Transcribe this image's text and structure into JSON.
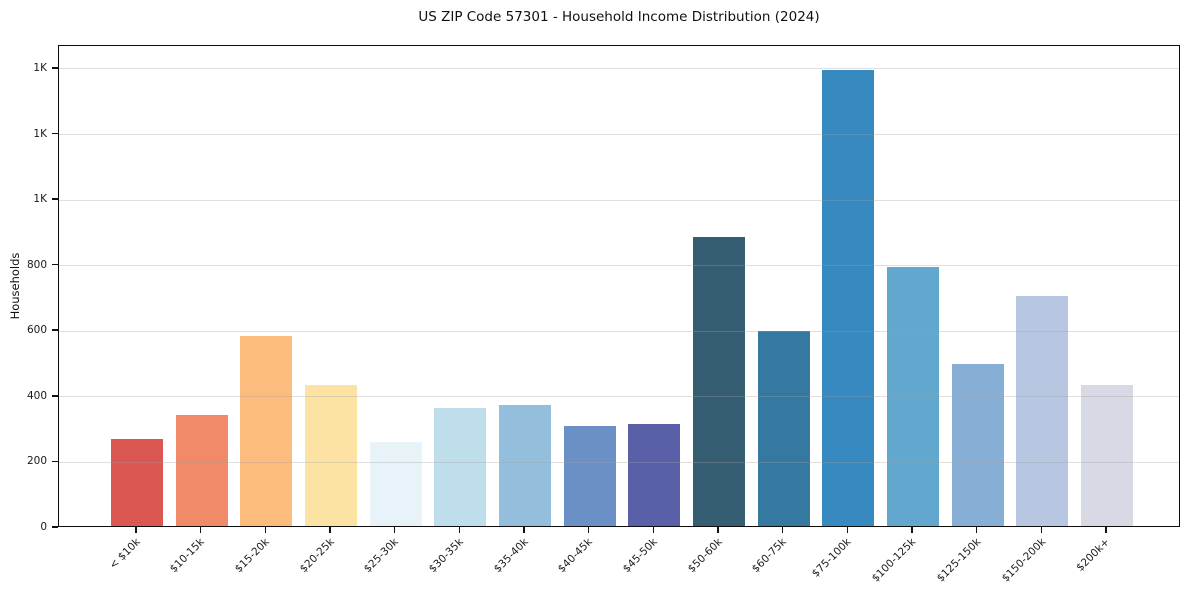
{
  "chart_data": {
    "type": "bar",
    "title": "US ZIP Code 57301 - Household Income Distribution (2024)",
    "ylabel": "Households",
    "xlabel": "",
    "categories": [
      "< $10k",
      "$10-15k",
      "$15-20k",
      "$20-25k",
      "$25-30k",
      "$30-35k",
      "$35-40k",
      "$40-45k",
      "$45-50k",
      "$50-60k",
      "$60-75k",
      "$75-100k",
      "$100-125k",
      "$125-150k",
      "$150-200k",
      "$200k+"
    ],
    "values": [
      265,
      340,
      580,
      430,
      255,
      360,
      370,
      305,
      310,
      880,
      595,
      1390,
      790,
      495,
      700,
      430
    ],
    "bar_colors": [
      "#db5751",
      "#f18a68",
      "#fcbc7e",
      "#fce3a4",
      "#e7f3f8",
      "#bfdeeb",
      "#93bfdd",
      "#6b90c6",
      "#5a60a8",
      "#365e73",
      "#3579a1",
      "#378abf",
      "#61a7ce",
      "#87aed4",
      "#b7c6e1",
      "#d7d9e5"
    ],
    "ylim": [
      0,
      1470
    ],
    "yticks": {
      "values": [
        0,
        200,
        400,
        600,
        800,
        1000,
        1200,
        1400
      ],
      "labels": [
        "0",
        "200",
        "400",
        "600",
        "800",
        "1K",
        "1K",
        "1K"
      ]
    },
    "grid": "horizontal gridlines drawn over bars",
    "legend": "none",
    "spine_color": "#0d0d0d",
    "gridline_color": "rgba(160,160,160,0.33)"
  }
}
